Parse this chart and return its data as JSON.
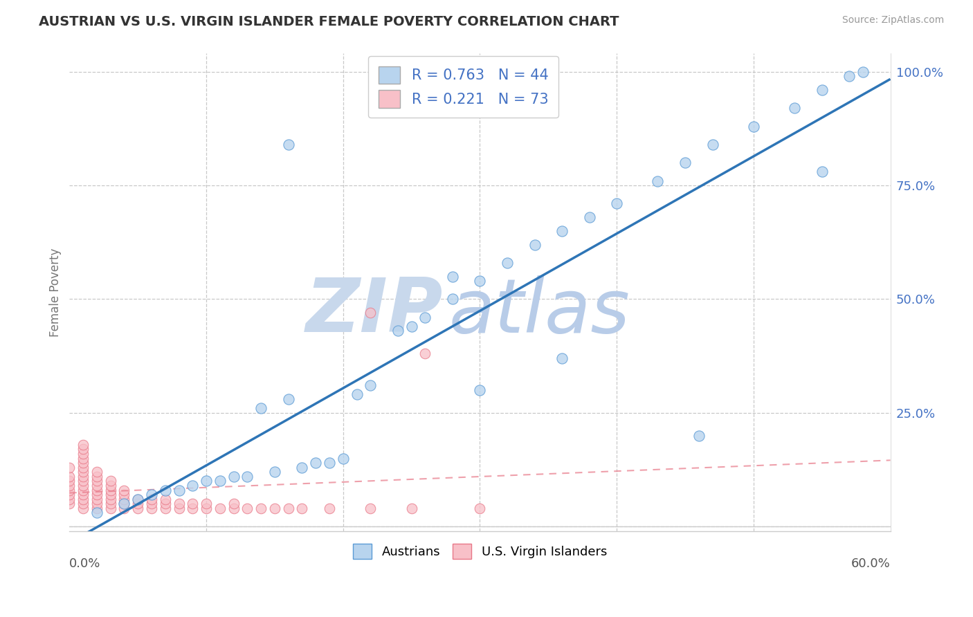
{
  "title": "AUSTRIAN VS U.S. VIRGIN ISLANDER FEMALE POVERTY CORRELATION CHART",
  "source": "Source: ZipAtlas.com",
  "ylabel": "Female Poverty",
  "x_range": [
    0.0,
    0.6
  ],
  "y_range": [
    -0.01,
    1.04
  ],
  "y_ticks": [
    0.0,
    0.25,
    0.5,
    0.75,
    1.0
  ],
  "y_tick_labels": [
    "",
    "25.0%",
    "50.0%",
    "75.0%",
    "100.0%"
  ],
  "x_tick_label_left": "0.0%",
  "x_tick_label_right": "60.0%",
  "austrians_R": 0.763,
  "austrians_N": 44,
  "virgin_R": 0.221,
  "virgin_N": 73,
  "blue_face": "#B8D4EE",
  "blue_edge": "#5B9BD5",
  "pink_face": "#F8C0C8",
  "pink_edge": "#E87888",
  "trend_blue": "#2E75B6",
  "trend_pink_dashed": "#E87888",
  "watermark_zip_color": "#C8D8EC",
  "watermark_atlas_color": "#B8CCE8",
  "background": "#FFFFFF",
  "title_color": "#333333",
  "source_color": "#999999",
  "ytick_color": "#4472C4",
  "legend_text_color": "#4472C4",
  "grid_color": "#C8C8C8",
  "grid_linestyle": "--",
  "spine_color": "#CCCCCC",
  "austrians_x": [
    0.02,
    0.04,
    0.05,
    0.06,
    0.07,
    0.08,
    0.09,
    0.1,
    0.11,
    0.12,
    0.13,
    0.14,
    0.15,
    0.16,
    0.17,
    0.18,
    0.19,
    0.2,
    0.21,
    0.22,
    0.24,
    0.25,
    0.26,
    0.28,
    0.3,
    0.3,
    0.32,
    0.34,
    0.36,
    0.38,
    0.4,
    0.43,
    0.45,
    0.47,
    0.5,
    0.53,
    0.55,
    0.55,
    0.57,
    0.58,
    0.16,
    0.28,
    0.36,
    0.46
  ],
  "austrians_y": [
    0.03,
    0.05,
    0.06,
    0.07,
    0.08,
    0.08,
    0.09,
    0.1,
    0.1,
    0.11,
    0.11,
    0.26,
    0.12,
    0.28,
    0.13,
    0.14,
    0.14,
    0.15,
    0.29,
    0.31,
    0.43,
    0.44,
    0.46,
    0.5,
    0.54,
    0.3,
    0.58,
    0.62,
    0.65,
    0.68,
    0.71,
    0.76,
    0.8,
    0.84,
    0.88,
    0.92,
    0.96,
    0.78,
    0.99,
    1.0,
    0.84,
    0.55,
    0.37,
    0.2
  ],
  "virgin_x": [
    0.0,
    0.0,
    0.0,
    0.0,
    0.0,
    0.0,
    0.0,
    0.0,
    0.01,
    0.01,
    0.01,
    0.01,
    0.01,
    0.01,
    0.01,
    0.01,
    0.01,
    0.01,
    0.01,
    0.01,
    0.01,
    0.01,
    0.01,
    0.02,
    0.02,
    0.02,
    0.02,
    0.02,
    0.02,
    0.02,
    0.02,
    0.02,
    0.03,
    0.03,
    0.03,
    0.03,
    0.03,
    0.03,
    0.03,
    0.04,
    0.04,
    0.04,
    0.04,
    0.04,
    0.05,
    0.05,
    0.05,
    0.06,
    0.06,
    0.06,
    0.07,
    0.07,
    0.07,
    0.08,
    0.08,
    0.09,
    0.09,
    0.1,
    0.1,
    0.11,
    0.12,
    0.12,
    0.13,
    0.14,
    0.15,
    0.16,
    0.17,
    0.19,
    0.22,
    0.22,
    0.25,
    0.26,
    0.3
  ],
  "virgin_y": [
    0.05,
    0.06,
    0.07,
    0.08,
    0.09,
    0.1,
    0.11,
    0.13,
    0.04,
    0.05,
    0.06,
    0.07,
    0.08,
    0.09,
    0.1,
    0.11,
    0.12,
    0.13,
    0.14,
    0.15,
    0.16,
    0.17,
    0.18,
    0.04,
    0.05,
    0.06,
    0.07,
    0.08,
    0.09,
    0.1,
    0.11,
    0.12,
    0.04,
    0.05,
    0.06,
    0.07,
    0.08,
    0.09,
    0.1,
    0.04,
    0.05,
    0.06,
    0.07,
    0.08,
    0.04,
    0.05,
    0.06,
    0.04,
    0.05,
    0.06,
    0.04,
    0.05,
    0.06,
    0.04,
    0.05,
    0.04,
    0.05,
    0.04,
    0.05,
    0.04,
    0.04,
    0.05,
    0.04,
    0.04,
    0.04,
    0.04,
    0.04,
    0.04,
    0.04,
    0.47,
    0.04,
    0.38,
    0.04
  ]
}
